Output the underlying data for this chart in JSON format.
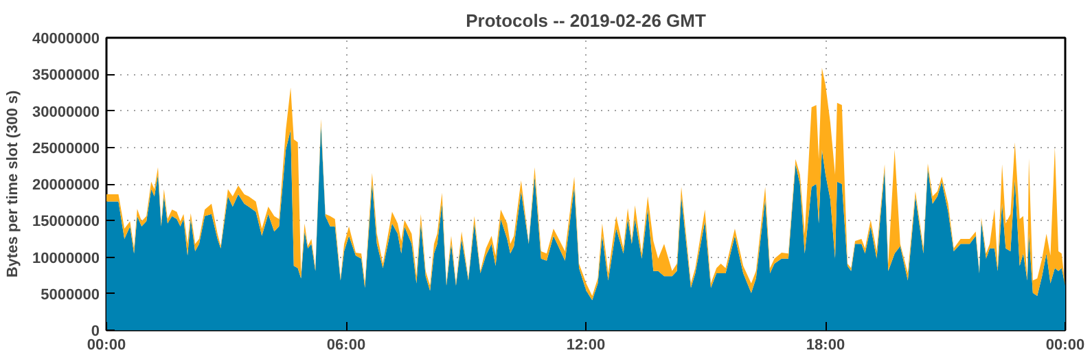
{
  "chart_data": {
    "type": "area",
    "stacked": true,
    "title": "Protocols -- 2019-02-26 GMT",
    "ylabel": "Bytes per time slot (300 s)",
    "x": [
      0,
      0.3,
      0.45,
      0.59,
      0.69,
      0.77,
      0.88,
      1.0,
      1.12,
      1.2,
      1.29,
      1.37,
      1.44,
      1.53,
      1.64,
      1.76,
      1.85,
      1.93,
      2.03,
      2.11,
      2.22,
      2.32,
      2.46,
      2.63,
      2.78,
      2.86,
      3.04,
      3.16,
      3.3,
      3.45,
      3.56,
      3.74,
      3.89,
      4.05,
      4.2,
      4.32,
      4.49,
      4.61,
      4.69,
      4.79,
      4.87,
      4.96,
      5.04,
      5.13,
      5.23,
      5.37,
      5.48,
      5.6,
      5.72,
      5.86,
      5.95,
      6.07,
      6.24,
      6.38,
      6.47,
      6.65,
      6.77,
      6.92,
      7.15,
      7.29,
      7.38,
      7.46,
      7.64,
      7.76,
      7.87,
      7.99,
      8.1,
      8.2,
      8.28,
      8.4,
      8.51,
      8.63,
      8.75,
      8.89,
      9.06,
      9.21,
      9.36,
      9.5,
      9.64,
      9.74,
      9.87,
      10.03,
      10.11,
      10.2,
      10.38,
      10.57,
      10.72,
      10.88,
      11.02,
      11.19,
      11.48,
      11.71,
      11.83,
      12.01,
      12.16,
      12.3,
      12.41,
      12.56,
      12.76,
      12.94,
      13.05,
      13.15,
      13.23,
      13.4,
      13.55,
      13.69,
      13.81,
      13.96,
      14.16,
      14.28,
      14.39,
      14.63,
      14.74,
      14.98,
      15.13,
      15.27,
      15.38,
      15.5,
      15.73,
      15.94,
      16.14,
      16.26,
      16.49,
      16.61,
      16.72,
      16.9,
      17.07,
      17.25,
      17.36,
      17.48,
      17.65,
      17.77,
      17.83,
      17.91,
      18.0,
      18.12,
      18.24,
      18.29,
      18.41,
      18.55,
      18.64,
      18.74,
      18.9,
      18.99,
      19.13,
      19.28,
      19.48,
      19.57,
      19.73,
      19.87,
      20.06,
      20.25,
      20.45,
      20.56,
      20.68,
      20.8,
      20.91,
      21.07,
      21.21,
      21.38,
      21.61,
      21.76,
      21.85,
      21.9,
      22.02,
      22.11,
      22.23,
      22.31,
      22.42,
      22.51,
      22.63,
      22.74,
      22.86,
      22.95,
      23.05,
      23.09,
      23.19,
      23.3,
      23.42,
      23.53,
      23.63,
      23.74,
      23.83,
      23.91,
      24.0
    ],
    "series": [
      {
        "color": "#0083b3",
        "values": [
          17600000,
          17600000,
          12500000,
          14200000,
          10500000,
          15600000,
          14200000,
          14900000,
          19300000,
          18300000,
          21300000,
          14200000,
          18300000,
          14600000,
          15600000,
          15200000,
          14200000,
          15200000,
          10200000,
          15200000,
          10800000,
          11800000,
          15600000,
          15900000,
          12500000,
          11200000,
          18300000,
          16900000,
          18600000,
          17300000,
          16900000,
          16200000,
          12900000,
          15900000,
          13500000,
          14200000,
          24700000,
          27400000,
          8800000,
          8500000,
          7100000,
          13500000,
          11200000,
          11800000,
          8100000,
          28100000,
          15600000,
          14200000,
          14200000,
          6800000,
          10800000,
          12900000,
          10200000,
          9800000,
          5800000,
          20100000,
          11800000,
          8500000,
          14600000,
          13200000,
          10500000,
          14200000,
          11800000,
          6400000,
          14600000,
          7400000,
          5400000,
          10500000,
          11800000,
          17300000,
          6100000,
          11800000,
          6100000,
          12500000,
          6800000,
          14600000,
          7800000,
          10200000,
          11800000,
          8800000,
          15200000,
          12500000,
          10500000,
          11500000,
          19000000,
          11800000,
          21000000,
          9800000,
          9500000,
          12900000,
          9500000,
          19600000,
          8500000,
          5400000,
          4100000,
          6400000,
          12900000,
          6800000,
          13900000,
          10500000,
          15200000,
          11800000,
          15200000,
          9800000,
          16600000,
          8100000,
          8100000,
          7400000,
          7400000,
          8100000,
          18300000,
          5800000,
          7800000,
          14900000,
          5800000,
          7800000,
          7800000,
          7800000,
          12900000,
          7800000,
          5100000,
          7100000,
          17900000,
          7800000,
          9100000,
          9800000,
          9800000,
          22700000,
          20000000,
          10500000,
          19600000,
          20000000,
          14600000,
          24700000,
          21300000,
          17900000,
          9800000,
          20300000,
          20000000,
          8800000,
          8100000,
          11800000,
          11800000,
          10500000,
          14200000,
          9800000,
          21900000,
          8100000,
          10500000,
          11500000,
          6800000,
          18300000,
          10500000,
          22100000,
          17300000,
          18300000,
          20300000,
          16200000,
          10800000,
          11800000,
          11800000,
          12900000,
          7800000,
          14900000,
          9800000,
          11200000,
          11200000,
          8100000,
          17300000,
          11200000,
          10800000,
          20600000,
          8800000,
          10500000,
          6800000,
          13200000,
          5100000,
          4700000,
          7400000,
          10500000,
          6400000,
          8500000,
          8100000,
          8500000,
          6100000
        ]
      },
      {
        "color": "#ffad1a",
        "values": [
          1000000,
          1000000,
          1400000,
          700000,
          700000,
          1000000,
          700000,
          700000,
          1000000,
          1000000,
          1000000,
          400000,
          1000000,
          600000,
          900000,
          1000000,
          700000,
          700000,
          1600000,
          800000,
          1000000,
          700000,
          900000,
          1400000,
          700000,
          300000,
          1000000,
          1400000,
          1200000,
          1300000,
          1400000,
          1400000,
          1000000,
          1000000,
          2100000,
          1000000,
          2700000,
          5800000,
          17300000,
          17200000,
          700000,
          1100000,
          300000,
          700000,
          400000,
          800000,
          300000,
          1400000,
          1000000,
          300000,
          1000000,
          1300000,
          400000,
          700000,
          600000,
          1400000,
          1400000,
          600000,
          1600000,
          1400000,
          1700000,
          900000,
          1400000,
          1000000,
          1300000,
          700000,
          700000,
          1300000,
          1400000,
          1500000,
          300000,
          1100000,
          300000,
          1000000,
          300000,
          1000000,
          300000,
          1000000,
          1100000,
          1400000,
          1300000,
          2100000,
          1300000,
          1400000,
          1500000,
          200000,
          1300000,
          1000000,
          1000000,
          1000000,
          1300000,
          1400000,
          600000,
          1000000,
          600000,
          700000,
          1700000,
          1000000,
          1700000,
          700000,
          1500000,
          400000,
          1900000,
          700000,
          1700000,
          4100000,
          1700000,
          4400000,
          700000,
          1000000,
          1300000,
          600000,
          700000,
          1600000,
          600000,
          700000,
          1300000,
          700000,
          1000000,
          1000000,
          1300000,
          1000000,
          1700000,
          700000,
          700000,
          800000,
          700000,
          700000,
          1300000,
          2700000,
          10900000,
          10800000,
          8800000,
          11200000,
          12200000,
          10500000,
          11500000,
          10800000,
          10800000,
          300000,
          400000,
          400000,
          700000,
          700000,
          900000,
          1000000,
          800000,
          1000000,
          14200000,
          300000,
          1000000,
          700000,
          700000,
          700000,
          1000000,
          700000,
          700000,
          1100000,
          400000,
          700000,
          700000,
          600000,
          300000,
          500000,
          700000,
          600000,
          5400000,
          400000,
          5400000,
          3400000,
          5100000,
          5100000,
          6400000,
          5100000,
          300000,
          10300000,
          1700000,
          2400000,
          2400000,
          2700000,
          3800000,
          16500000,
          2700000,
          2000000,
          0
        ]
      }
    ],
    "xlim": [
      0,
      24
    ],
    "ylim": [
      0,
      40000000
    ],
    "xticks": [
      {
        "value": 0,
        "label": "00:00"
      },
      {
        "value": 6,
        "label": "06:00"
      },
      {
        "value": 12,
        "label": "12:00"
      },
      {
        "value": 18,
        "label": "18:00"
      },
      {
        "value": 24,
        "label": "00:00"
      }
    ],
    "yticks": [
      0,
      5000000,
      10000000,
      15000000,
      20000000,
      25000000,
      30000000,
      35000000,
      40000000
    ],
    "grid": true
  }
}
